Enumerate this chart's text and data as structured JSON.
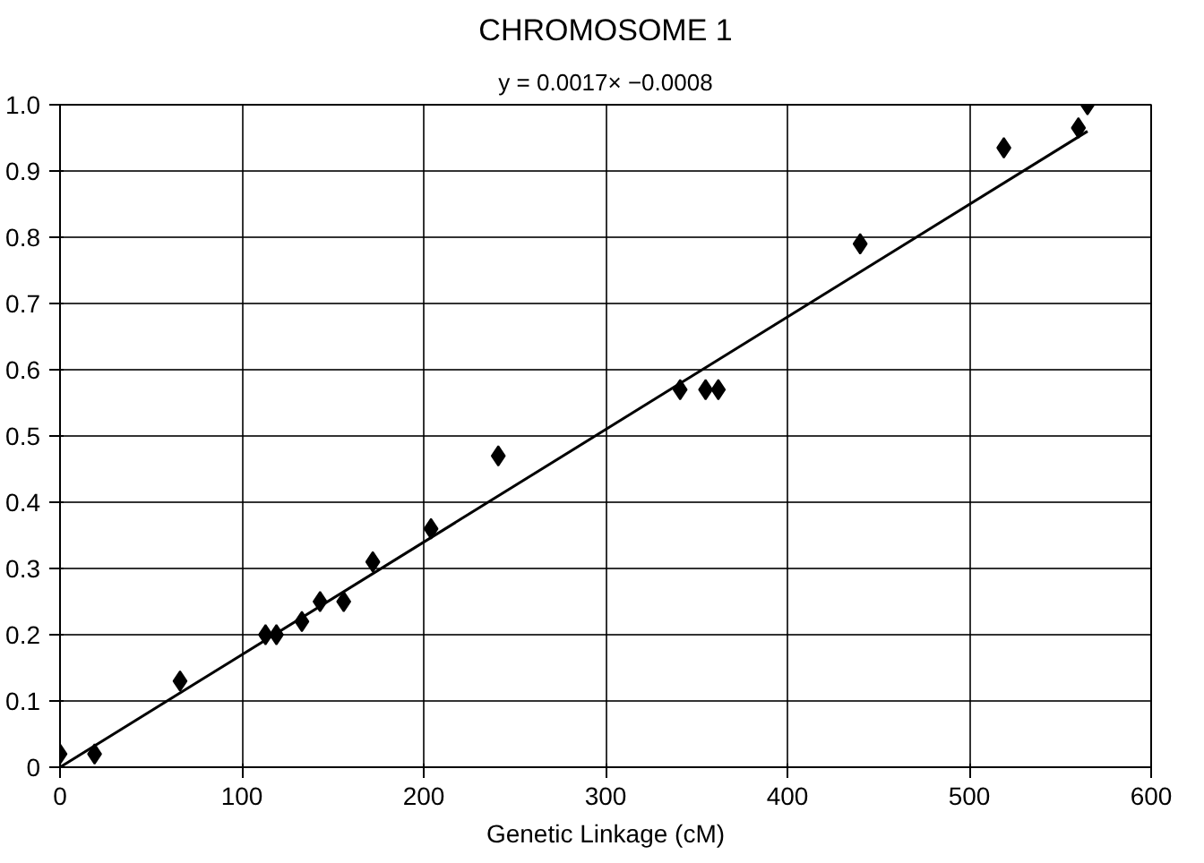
{
  "chart_data": {
    "type": "scatter",
    "title": "CHROMOSOME 1",
    "subtitle": "y = 0.0017× −0.0008",
    "xlabel": "Genetic Linkage (cM)",
    "xlim": [
      0,
      600
    ],
    "xticks": [
      0,
      100,
      200,
      300,
      400,
      500,
      600
    ],
    "ylim": [
      0,
      1.0
    ],
    "yticks": [
      {
        "value": 0,
        "label": "0"
      },
      0.1,
      0.2,
      0.3,
      0.4,
      0.5,
      0.6,
      0.7,
      0.8,
      0.9,
      {
        "value": 1.0,
        "label": "1.0"
      }
    ],
    "grid": true,
    "series": [
      {
        "marker": "diamond",
        "color": "#000000",
        "x": [
          0,
          19,
          66,
          113,
          119,
          133,
          143,
          156,
          172,
          204,
          241,
          341,
          355,
          362,
          440,
          519,
          560,
          565
        ],
        "values": [
          0.02,
          0.02,
          0.13,
          0.2,
          0.2,
          0.22,
          0.25,
          0.25,
          0.31,
          0.36,
          0.47,
          0.57,
          0.57,
          0.57,
          0.79,
          0.935,
          0.965,
          1.0
        ]
      },
      {
        "type": "line",
        "color": "#000000",
        "line_style": "solid",
        "x": [
          0,
          565
        ],
        "values": [
          0,
          0.96
        ]
      }
    ]
  }
}
